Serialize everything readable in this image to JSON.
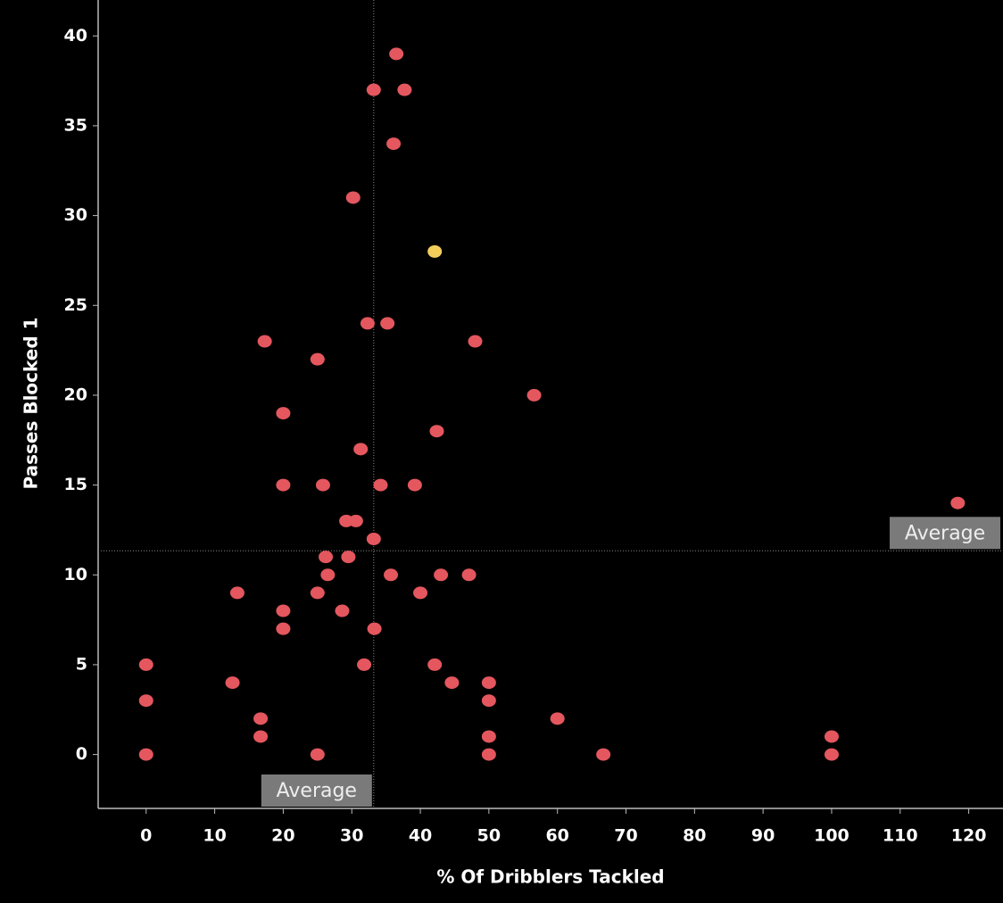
{
  "chart_data": {
    "type": "scatter",
    "xlabel": "% Of Dribblers Tackled",
    "ylabel": "Passes Blocked 1",
    "xlim": [
      -7,
      125
    ],
    "xticks": [
      0,
      10,
      20,
      30,
      40,
      50,
      60,
      70,
      80,
      90,
      100,
      110,
      120
    ],
    "ylim": [
      -3,
      42
    ],
    "yticks": [
      0,
      5,
      10,
      15,
      20,
      25,
      30,
      35,
      40
    ],
    "series": [
      {
        "color": "#e4575e",
        "x": [
          36.5,
          33.2,
          37.7,
          36.1,
          30.2,
          32.3,
          35.2,
          17.3,
          48,
          25,
          56.6,
          20,
          42.4,
          31.3,
          20,
          25.8,
          34.2,
          39.2,
          118.4,
          29.2,
          30.6,
          33.2,
          26.2,
          29.5,
          26.5,
          35.7,
          43,
          47.1,
          13.3,
          25,
          40,
          20,
          28.6,
          20,
          33.3,
          0,
          31.8,
          42.1,
          12.6,
          44.6,
          50,
          0,
          50,
          16.7,
          60,
          16.7,
          50,
          100,
          0,
          25,
          50,
          66.7,
          100
        ],
        "values": [
          39,
          37,
          37,
          34,
          31,
          24,
          24,
          23,
          23,
          22,
          20,
          19,
          18,
          17,
          15,
          15,
          15,
          15,
          14,
          13,
          13,
          12,
          11,
          11,
          10,
          10,
          10,
          10,
          9,
          9,
          9,
          8,
          8,
          7,
          7,
          5,
          5,
          5,
          4,
          4,
          4,
          3,
          3,
          2,
          2,
          1,
          1,
          1,
          0,
          0,
          0,
          0,
          0
        ]
      },
      {
        "color": "#f2cd5c",
        "x": [
          42.1
        ],
        "values": [
          28
        ]
      }
    ],
    "reference_lines": [
      {
        "axis": "x",
        "value": 33.2,
        "label": "Average"
      },
      {
        "axis": "y",
        "value": 11.34,
        "label": "Average"
      }
    ]
  }
}
